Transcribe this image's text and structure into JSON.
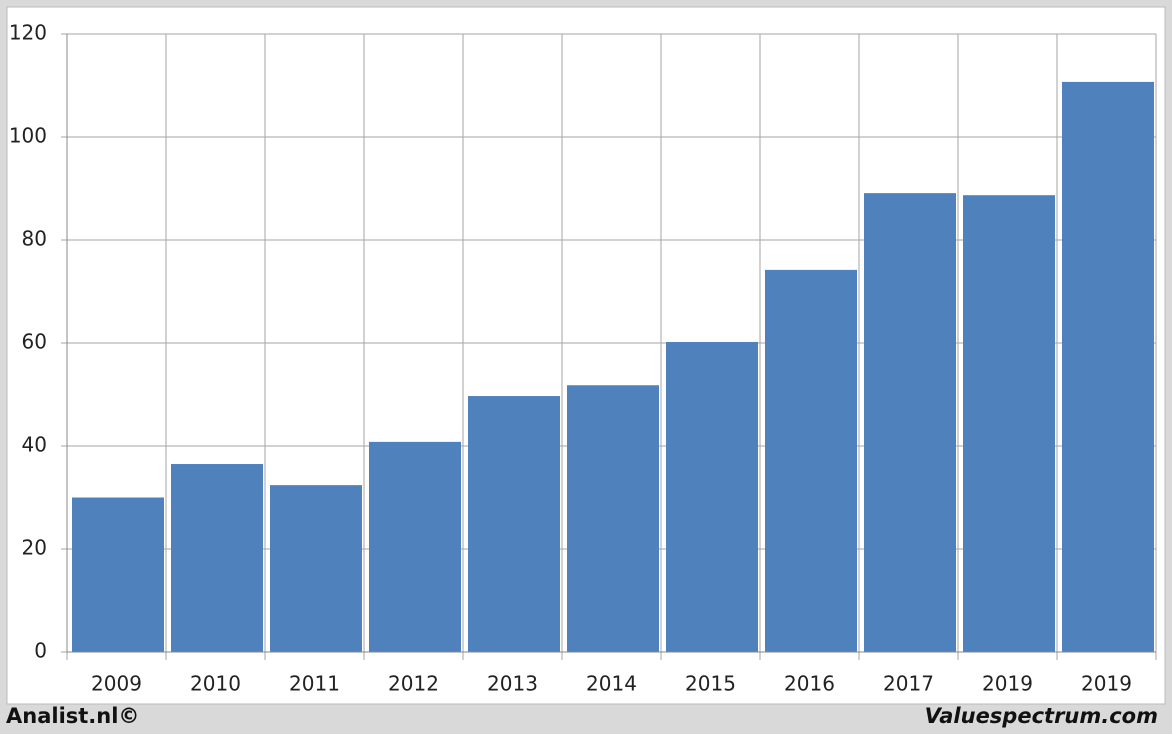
{
  "chart_data": {
    "type": "bar",
    "categories": [
      "2009",
      "2010",
      "2011",
      "2012",
      "2013",
      "2014",
      "2015",
      "2016",
      "2017",
      "2019",
      "2019"
    ],
    "values": [
      30,
      36.5,
      32.4,
      40.8,
      49.7,
      51.8,
      60.2,
      74.2,
      89.1,
      88.7,
      110.7
    ],
    "color": "#4f81bd",
    "ylim": [
      0,
      120
    ],
    "yticks": [
      0,
      20,
      40,
      60,
      80,
      100,
      120
    ],
    "grid": true,
    "footer_left": "Analist.nl©",
    "footer_right": "Valuespectrum.com"
  }
}
